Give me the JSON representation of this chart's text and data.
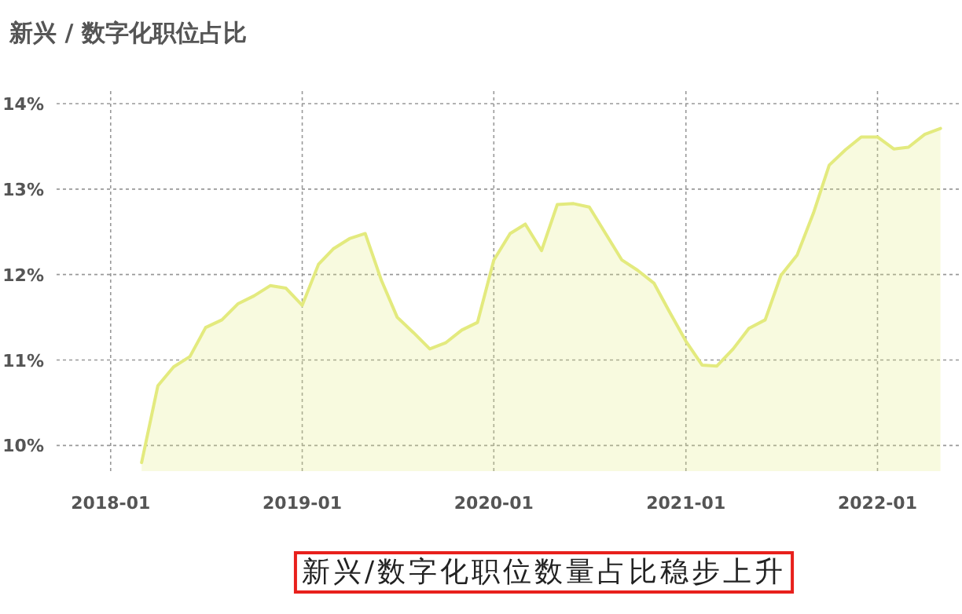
{
  "chart_data": {
    "type": "area",
    "title": "新兴 / 数字化职位占比",
    "x": [
      "2018-03",
      "2018-04",
      "2018-05",
      "2018-06",
      "2018-07",
      "2018-08",
      "2018-09",
      "2018-10",
      "2018-11",
      "2018-12",
      "2019-01",
      "2019-02",
      "2019-03",
      "2019-04",
      "2019-05",
      "2019-06",
      "2019-07",
      "2019-08",
      "2019-09",
      "2019-10",
      "2019-11",
      "2019-12",
      "2020-01",
      "2020-02",
      "2020-03",
      "2020-04",
      "2020-05",
      "2020-06",
      "2020-07",
      "2020-08",
      "2020-09",
      "2020-10",
      "2020-11",
      "2020-12",
      "2021-01",
      "2021-02",
      "2021-03",
      "2021-04",
      "2021-05",
      "2021-06",
      "2021-07",
      "2021-08",
      "2021-09",
      "2021-10",
      "2021-11",
      "2021-12",
      "2022-01",
      "2022-02",
      "2022-03",
      "2022-04",
      "2022-05"
    ],
    "series": [
      {
        "color": "#e3ea7e",
        "values": [
          9.8,
          10.7,
          10.92,
          11.04,
          11.38,
          11.47,
          11.66,
          11.75,
          11.87,
          11.84,
          11.64,
          12.12,
          12.3,
          12.42,
          12.48,
          11.93,
          11.5,
          11.32,
          11.13,
          11.2,
          11.35,
          11.44,
          12.17,
          12.48,
          12.59,
          12.28,
          12.82,
          12.83,
          12.79,
          12.48,
          12.17,
          12.05,
          11.9,
          11.56,
          11.22,
          10.94,
          10.93,
          11.13,
          11.37,
          11.47,
          11.99,
          12.23,
          12.72,
          13.28,
          13.46,
          13.61,
          13.61,
          13.47,
          13.49,
          13.64,
          13.71
        ]
      }
    ],
    "xlim": [
      "2017-09-20",
      "2022-06-05"
    ],
    "ylim": [
      9.7,
      14
    ],
    "xticks": [
      "2018-01",
      "2019-01",
      "2020-01",
      "2021-01",
      "2022-01"
    ],
    "yticks": [
      {
        "value": 10,
        "label": "10%"
      },
      {
        "value": 11,
        "label": "11%"
      },
      {
        "value": 12,
        "label": "12%"
      },
      {
        "value": 13,
        "label": "13%"
      },
      {
        "value": 14,
        "label": "14%"
      }
    ],
    "grid": true,
    "annotations": [
      "新兴/数字化职位数量占比稳步上升"
    ]
  }
}
